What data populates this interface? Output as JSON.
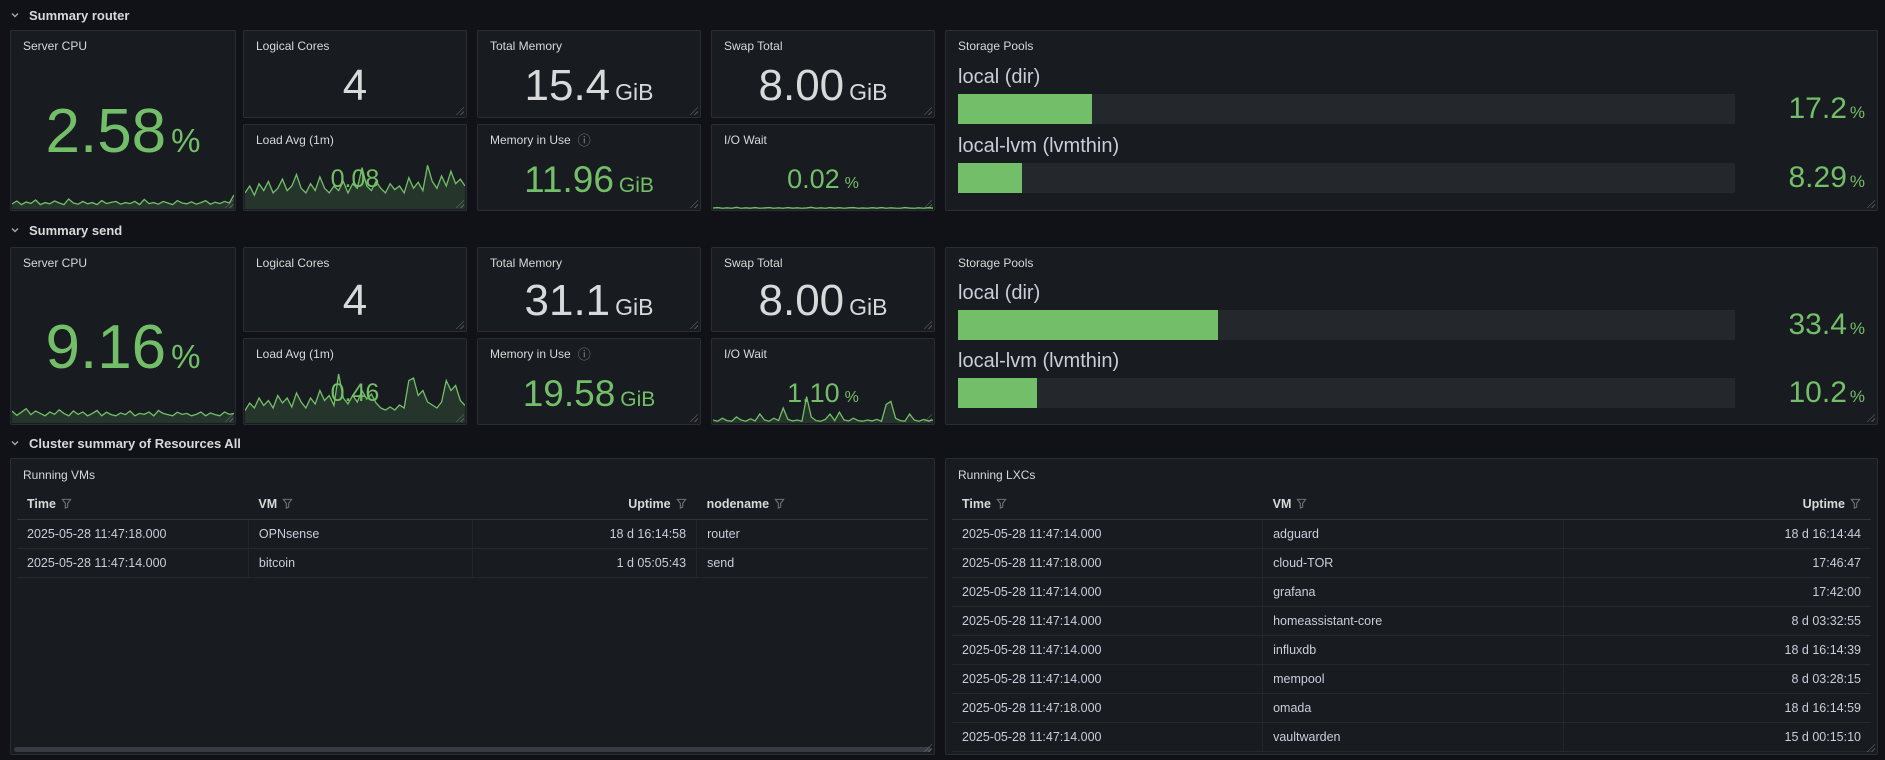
{
  "theme": {
    "background": "#111217",
    "panel_background": "#181b1f",
    "green": "#73bf69",
    "green_fill": "rgba(115,191,105,0.16)",
    "text": "#ccccdc",
    "text_bright": "#d8d9da"
  },
  "icons": {
    "info": "ⓘ"
  },
  "sections": [
    {
      "header": "Summary router",
      "server_cpu": {
        "title": "Server CPU",
        "value": "2.58",
        "unit": "%"
      },
      "logical_cores": {
        "title": "Logical Cores",
        "value": "4",
        "unit": ""
      },
      "load_avg": {
        "title": "Load Avg (1m)",
        "value": "0.08",
        "unit": ""
      },
      "total_memory": {
        "title": "Total Memory",
        "value": "15.4",
        "unit": "GiB"
      },
      "memory_in_use": {
        "title": "Memory in Use",
        "value": "11.96",
        "unit": "GiB"
      },
      "swap_total": {
        "title": "Swap Total",
        "value": "8.00",
        "unit": "GiB"
      },
      "io_wait": {
        "title": "I/O Wait",
        "value": "0.02",
        "unit": "%"
      },
      "storage_pools": {
        "title": "Storage Pools",
        "bars": [
          {
            "label": "local (dir)",
            "value": "17.2",
            "unit": "%",
            "percent": 17.2
          },
          {
            "label": "local-lvm (lvmthin)",
            "value": "8.29",
            "unit": "%",
            "percent": 8.29
          }
        ]
      }
    },
    {
      "header": "Summary send",
      "server_cpu": {
        "title": "Server CPU",
        "value": "9.16",
        "unit": "%"
      },
      "logical_cores": {
        "title": "Logical Cores",
        "value": "4",
        "unit": ""
      },
      "load_avg": {
        "title": "Load Avg (1m)",
        "value": "0.46",
        "unit": ""
      },
      "total_memory": {
        "title": "Total Memory",
        "value": "31.1",
        "unit": "GiB"
      },
      "memory_in_use": {
        "title": "Memory in Use",
        "value": "19.58",
        "unit": "GiB"
      },
      "swap_total": {
        "title": "Swap Total",
        "value": "8.00",
        "unit": "GiB"
      },
      "io_wait": {
        "title": "I/O Wait",
        "value": "1.10",
        "unit": "%"
      },
      "storage_pools": {
        "title": "Storage Pools",
        "bars": [
          {
            "label": "local (dir)",
            "value": "33.4",
            "unit": "%",
            "percent": 33.4
          },
          {
            "label": "local-lvm (lvmthin)",
            "value": "10.2",
            "unit": "%",
            "percent": 10.2
          }
        ]
      }
    }
  ],
  "cluster": {
    "header": "Cluster summary of Resources All",
    "running_vms": {
      "title": "Running VMs",
      "columns": [
        "Time",
        "VM",
        "Uptime",
        "nodename"
      ],
      "rows": [
        [
          "2025-05-28 11:47:18.000",
          "OPNsense",
          "18 d 16:14:58",
          "router"
        ],
        [
          "2025-05-28 11:47:14.000",
          "bitcoin",
          "1 d 05:05:43",
          "send"
        ]
      ]
    },
    "running_lxcs": {
      "title": "Running LXCs",
      "columns": [
        "Time",
        "VM",
        "Uptime"
      ],
      "rows": [
        [
          "2025-05-28 11:47:14.000",
          "adguard",
          "18 d 16:14:44"
        ],
        [
          "2025-05-28 11:47:18.000",
          "cloud-TOR",
          "17:46:47"
        ],
        [
          "2025-05-28 11:47:14.000",
          "grafana",
          "17:42:00"
        ],
        [
          "2025-05-28 11:47:14.000",
          "homeassistant-core",
          "8 d 03:32:55"
        ],
        [
          "2025-05-28 11:47:14.000",
          "influxdb",
          "18 d 16:14:39"
        ],
        [
          "2025-05-28 11:47:14.000",
          "mempool",
          "8 d 03:28:15"
        ],
        [
          "2025-05-28 11:47:18.000",
          "omada",
          "18 d 16:14:59"
        ],
        [
          "2025-05-28 11:47:14.000",
          "vaultwarden",
          "15 d 00:15:10"
        ]
      ]
    }
  },
  "sparklines": {
    "router_cpu": [
      0.25,
      0.4,
      0.22,
      0.35,
      0.28,
      0.45,
      0.22,
      0.32,
      0.26,
      0.4,
      0.3,
      0.22,
      0.5,
      0.3,
      0.24,
      0.38,
      0.26,
      0.32,
      0.22,
      0.42,
      0.27,
      0.33,
      0.38,
      0.24,
      0.32,
      0.27,
      0.38,
      0.22,
      0.48,
      0.27,
      0.32,
      0.24,
      0.38,
      0.3,
      0.22,
      0.42,
      0.3,
      0.26,
      0.36,
      0.24,
      0.32,
      0.42,
      0.24,
      0.34,
      0.27,
      0.38,
      0.3,
      0.7
    ],
    "router_load": [
      0.35,
      0.5,
      0.3,
      0.55,
      0.4,
      0.6,
      0.35,
      0.45,
      0.65,
      0.4,
      0.5,
      0.75,
      0.45,
      0.35,
      0.55,
      0.4,
      0.7,
      0.45,
      0.35,
      0.5,
      0.4,
      0.6,
      0.35,
      0.55,
      0.45,
      0.9,
      0.5,
      0.4,
      0.6,
      0.45,
      0.35,
      0.55,
      0.42,
      0.5,
      0.35,
      0.68,
      0.45,
      0.58,
      0.4,
      0.95,
      0.6,
      0.45,
      0.72,
      0.5,
      0.82,
      0.55,
      0.65,
      0.5
    ],
    "router_io": [
      0.08,
      0.12,
      0.06,
      0.1,
      0.06,
      0.14,
      0.06,
      0.1,
      0.07,
      0.12,
      0.06,
      0.09,
      0.12,
      0.06,
      0.1,
      0.06,
      0.12,
      0.07,
      0.1,
      0.06,
      0.09,
      0.14,
      0.06,
      0.1,
      0.06,
      0.12,
      0.07,
      0.11,
      0.06,
      0.1,
      0.12,
      0.06,
      0.09,
      0.06,
      0.11,
      0.07,
      0.12,
      0.06,
      0.1,
      0.07,
      0.06,
      0.12,
      0.08,
      0.06,
      0.1,
      0.06,
      0.11,
      0.08
    ],
    "send_cpu": [
      0.5,
      0.32,
      0.45,
      0.6,
      0.35,
      0.5,
      0.4,
      0.3,
      0.46,
      0.36,
      0.55,
      0.4,
      0.3,
      0.5,
      0.36,
      0.46,
      0.3,
      0.4,
      0.52,
      0.3,
      0.45,
      0.35,
      0.3,
      0.42,
      0.35,
      0.5,
      0.3,
      0.4,
      0.36,
      0.46,
      0.3,
      0.52,
      0.4,
      0.35,
      0.3,
      0.45,
      0.36,
      0.4,
      0.3,
      0.36,
      0.46,
      0.3,
      0.42,
      0.35,
      0.3,
      0.46,
      0.36,
      0.4
    ],
    "send_load": [
      0.25,
      0.4,
      0.3,
      0.5,
      0.35,
      0.45,
      0.3,
      0.55,
      0.4,
      0.5,
      0.32,
      0.6,
      0.42,
      0.3,
      0.5,
      0.38,
      0.65,
      0.45,
      0.55,
      0.35,
      0.98,
      0.5,
      0.38,
      0.55,
      0.42,
      0.65,
      0.48,
      0.58,
      0.4,
      0.3,
      0.26,
      0.32,
      0.26,
      0.36,
      0.3,
      0.85,
      0.9,
      0.55,
      0.65,
      0.42,
      0.36,
      0.3,
      0.42,
      0.85,
      0.65,
      0.75,
      0.45,
      0.35
    ],
    "send_io": [
      0.1,
      0.06,
      0.16,
      0.08,
      0.06,
      0.2,
      0.1,
      0.06,
      0.14,
      0.07,
      0.3,
      0.1,
      0.06,
      0.16,
      0.08,
      0.5,
      0.12,
      0.07,
      0.1,
      0.06,
      0.88,
      0.2,
      0.08,
      0.06,
      0.12,
      0.3,
      0.08,
      0.36,
      0.1,
      0.07,
      0.16,
      0.08,
      0.06,
      0.1,
      0.07,
      0.12,
      0.06,
      0.62,
      0.72,
      0.16,
      0.08,
      0.06,
      0.3,
      0.1,
      0.06,
      0.12,
      0.07,
      0.1
    ]
  }
}
